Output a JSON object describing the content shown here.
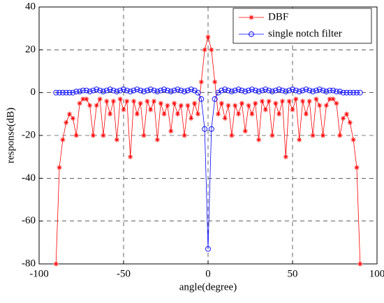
{
  "chart_data": {
    "type": "line",
    "xlabel": "angle(degree)",
    "ylabel": "response(dB)",
    "xlim": [
      -100,
      100
    ],
    "xticks": [
      -100,
      -50,
      0,
      50,
      100
    ],
    "ylim": [
      -80,
      40
    ],
    "yticks": [
      -80,
      -60,
      -40,
      -20,
      0,
      20,
      40
    ],
    "grid": true,
    "legend": "upper right",
    "x": [
      -90,
      -88,
      -86,
      -84,
      -82,
      -80,
      -78,
      -76,
      -74,
      -72,
      -70,
      -68,
      -66,
      -64,
      -62,
      -60,
      -58,
      -56,
      -54,
      -52,
      -50,
      -48,
      -46,
      -44,
      -42,
      -40,
      -38,
      -36,
      -34,
      -32,
      -30,
      -28,
      -26,
      -24,
      -22,
      -20,
      -18,
      -16,
      -14,
      -12,
      -10,
      -8,
      -6,
      -4,
      -2,
      0,
      2,
      4,
      6,
      8,
      10,
      12,
      14,
      16,
      18,
      20,
      22,
      24,
      26,
      28,
      30,
      32,
      34,
      36,
      38,
      40,
      42,
      44,
      46,
      48,
      50,
      52,
      54,
      56,
      58,
      60,
      62,
      64,
      66,
      68,
      70,
      72,
      74,
      76,
      78,
      80,
      82,
      84,
      86,
      88,
      90
    ],
    "series": [
      {
        "name": "DBF",
        "color": "#ff0000",
        "marker": "asterisk",
        "values": [
          -80,
          -35,
          -22,
          -14,
          -10,
          -12,
          -20,
          -5,
          -3,
          -3,
          -6,
          -20,
          -6,
          -3,
          -20,
          -4,
          -10,
          -4,
          -22,
          -3,
          -8,
          -4,
          -30,
          -4,
          -10,
          -5,
          -20,
          -4,
          -8,
          -4,
          -22,
          -5,
          -10,
          -6,
          -18,
          -5,
          -10,
          -6,
          -20,
          -6,
          -12,
          -5,
          -10,
          5,
          20,
          26,
          20,
          5,
          -10,
          -5,
          -12,
          -6,
          -20,
          -6,
          -10,
          -5,
          -18,
          -6,
          -10,
          -5,
          -22,
          -4,
          -8,
          -4,
          -20,
          -5,
          -10,
          -4,
          -30,
          -4,
          -8,
          -3,
          -22,
          -4,
          -10,
          -4,
          -20,
          -3,
          -6,
          -20,
          -6,
          -3,
          -3,
          -5,
          -20,
          -12,
          -10,
          -14,
          -22,
          -35,
          -80
        ]
      },
      {
        "name": "single notch filter",
        "color": "#0000ff",
        "marker": "circle",
        "values": [
          0,
          0,
          0,
          0,
          0,
          0,
          0.5,
          0.5,
          1,
          1,
          0.5,
          1,
          1.5,
          1,
          0.5,
          1,
          1.5,
          1,
          0.5,
          1,
          1.5,
          1,
          0.5,
          1,
          1.5,
          1,
          0.5,
          1,
          1.5,
          1,
          0.5,
          1,
          1.5,
          1,
          0.5,
          1,
          1.5,
          1,
          0.5,
          1,
          1.5,
          1,
          0,
          -3,
          -17,
          -73,
          -17,
          -3,
          0,
          1,
          1.5,
          1,
          0.5,
          1,
          1.5,
          1,
          0.5,
          1,
          1.5,
          1,
          0.5,
          1,
          1.5,
          1,
          0.5,
          1,
          1.5,
          1,
          0.5,
          1,
          1.5,
          1,
          0.5,
          1,
          1.5,
          1,
          0.5,
          1,
          1.5,
          1,
          0.5,
          1,
          1,
          0.5,
          0.5,
          0,
          0,
          0,
          0,
          0,
          0
        ]
      }
    ]
  }
}
